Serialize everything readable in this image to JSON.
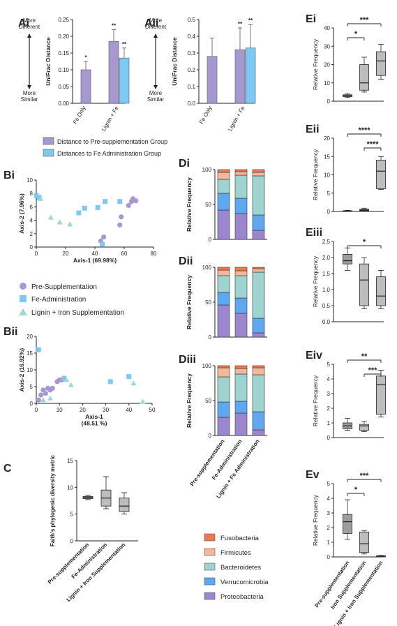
{
  "colors": {
    "purple": "#a898d0",
    "blue": "#7ec8f2",
    "teal": "#9fd6d6",
    "orange_red": "#f07850",
    "salmon": "#f4b79a",
    "light_teal": "#9ed3d0",
    "verr_blue": "#5fa8f0",
    "proteo": "#9c87cf",
    "gray_box": "#9e9e9e",
    "gray_box2": "#bdbdbd"
  },
  "panels": {
    "Ai": {
      "label": "Ai",
      "more_different": "More\nDifferent",
      "more_similar": "More\nSimilar",
      "ylabel": "UniFrac Distance",
      "ylim": [
        0,
        0.25
      ],
      "yticks": [
        "0.00",
        "0.05",
        "0.10",
        "0.15",
        "0.20",
        "0.25"
      ],
      "categories": [
        "Fe Only",
        "Lignin + Fe"
      ],
      "bars": [
        {
          "cat": 0,
          "series": "pre",
          "value": 0.1,
          "err": 0.025,
          "sig": "*"
        },
        {
          "cat": 1,
          "series": "pre",
          "value": 0.185,
          "err": 0.035,
          "sig": "**"
        },
        {
          "cat": 1,
          "series": "fe",
          "value": 0.135,
          "err": 0.03,
          "sig": "**"
        }
      ]
    },
    "Aii": {
      "label": "Aii",
      "more_different": "More\nDifferent",
      "more_similar": "More\nSimilar",
      "ylabel": "UniFrac Distance",
      "ylim": [
        0,
        0.5
      ],
      "yticks": [
        "0.0",
        "0.1",
        "0.2",
        "0.3",
        "0.4",
        "0.5"
      ],
      "categories": [
        "Fe Only",
        "Lignin + Fe"
      ],
      "bars": [
        {
          "cat": 0,
          "series": "pre",
          "value": 0.28,
          "err": 0.11,
          "sig": ""
        },
        {
          "cat": 1,
          "series": "pre",
          "value": 0.32,
          "err": 0.13,
          "sig": "**"
        },
        {
          "cat": 1,
          "series": "fe",
          "value": 0.33,
          "err": 0.14,
          "sig": "**"
        }
      ]
    },
    "A_legend": [
      "Distance to Pre-supplementation Group",
      "Distances to Fe Administration Group"
    ],
    "Bi": {
      "label": "Bi",
      "xlabel": "Axis-1 (69.98%)",
      "ylabel": "Axis-2 (7.96%)",
      "xlim": [
        0,
        80
      ],
      "ylim": [
        0,
        10
      ],
      "xticks": [
        "0",
        "20",
        "40",
        "60",
        "80"
      ],
      "yticks": [
        "0",
        "2",
        "4",
        "6",
        "8",
        "10"
      ],
      "pre": [
        [
          44,
          0.9
        ],
        [
          46,
          1.5
        ],
        [
          57,
          3.3
        ],
        [
          58,
          4.5
        ],
        [
          63,
          6.2
        ],
        [
          65,
          6.8
        ],
        [
          66,
          7.2
        ],
        [
          68,
          6.9
        ]
      ],
      "fe": [
        [
          29,
          5.1
        ],
        [
          33,
          5.8
        ],
        [
          42,
          5.9
        ],
        [
          45,
          0.4
        ],
        [
          47,
          6.8
        ],
        [
          57,
          6.8
        ],
        [
          0,
          7.7
        ],
        [
          2,
          7.4
        ]
      ],
      "lig": [
        [
          3,
          7.2
        ],
        [
          10,
          4.4
        ],
        [
          16,
          3.7
        ],
        [
          23,
          3.4
        ]
      ]
    },
    "B_legend": [
      "Pre-Supplementation",
      "Fe-Administration",
      "Lignin + Iron Supplementation"
    ],
    "Bii": {
      "label": "Bii",
      "xlabel": "Axis-1\n(48.51 %)",
      "ylabel": "Axis-2 (16.92%)",
      "xlim": [
        0,
        50
      ],
      "ylim": [
        0,
        20
      ],
      "xticks": [
        "0",
        "10",
        "20",
        "30",
        "40",
        "50"
      ],
      "yticks": [
        "0",
        "5",
        "10",
        "15",
        "20"
      ],
      "pre": [
        [
          1,
          1
        ],
        [
          2,
          2.5
        ],
        [
          3,
          4
        ],
        [
          4,
          3
        ],
        [
          5,
          4.5
        ],
        [
          6,
          4
        ],
        [
          7,
          4.5
        ],
        [
          9,
          6.5
        ],
        [
          10,
          7
        ],
        [
          11,
          7
        ]
      ],
      "fe": [
        [
          1,
          16
        ],
        [
          12,
          7.5
        ],
        [
          32,
          6.5
        ],
        [
          40,
          8
        ]
      ],
      "lig": [
        [
          3,
          1
        ],
        [
          6,
          1.5
        ],
        [
          13,
          7
        ],
        [
          15,
          5.5
        ],
        [
          42,
          6
        ],
        [
          46,
          0.5
        ]
      ]
    },
    "C": {
      "label": "C",
      "ylabel": "Faith's phylogenic diversity metric",
      "ylim": [
        0,
        15
      ],
      "yticks": [
        "0",
        "5",
        "10",
        "15"
      ],
      "categories": [
        "Pre-supplementation",
        "Fe-Administration",
        "Lignin + Iron Supplementation"
      ],
      "boxes": [
        {
          "min": 7.7,
          "q1": 7.9,
          "med": 8.1,
          "q3": 8.3,
          "max": 8.5
        },
        {
          "min": 6,
          "q1": 6.5,
          "med": 8,
          "q3": 9.5,
          "max": 12
        },
        {
          "min": 5,
          "q1": 5.5,
          "med": 6.5,
          "q3": 8,
          "max": 9
        }
      ]
    },
    "D": {
      "ylabel": "Relative Frequency",
      "ylim": [
        0,
        100
      ],
      "yticks": [
        "0",
        "50",
        "100"
      ],
      "categories": [
        "Pre-supplementation",
        "Fe-Administration",
        "Lignin + Fe Administration"
      ],
      "phyla": [
        "Proteobacteria",
        "Verrucomicrobia",
        "Bacteroidetes",
        "Firmicutes",
        "Fusobacteria"
      ],
      "panels": [
        {
          "label": "Di",
          "stacks": [
            [
              42,
              24,
              20,
              10,
              4
            ],
            [
              37,
              22,
              33,
              5,
              3
            ],
            [
              13,
              22,
              56,
              5,
              4
            ]
          ]
        },
        {
          "label": "Dii",
          "stacks": [
            [
              46,
              18,
              24,
              8,
              4
            ],
            [
              34,
              22,
              32,
              7,
              5
            ],
            [
              6,
              21,
              66,
              5,
              2
            ]
          ]
        },
        {
          "label": "Diii",
          "stacks": [
            [
              26,
              22,
              36,
              13,
              3
            ],
            [
              32,
              17,
              39,
              8,
              4
            ],
            [
              8,
              26,
              53,
              10,
              3
            ]
          ]
        }
      ]
    },
    "D_legend": [
      "Fusobacteria",
      "Firmicutes",
      "Bacteroidetes",
      "Verrucomicrobia",
      "Proteobacteria"
    ],
    "E": {
      "ylabel": "Relative Frequency",
      "categories": [
        "Pre-supplementation",
        "Iron Supplementation",
        "Lignin + Iron Supplementation"
      ],
      "panels": [
        {
          "label": "Ei",
          "ylim": [
            0,
            40
          ],
          "yticks": [
            "0",
            "10",
            "20",
            "30",
            "40"
          ],
          "boxes": [
            [
              2,
              2.5,
              3,
              3.5,
              4
            ],
            [
              5,
              6,
              10,
              20,
              24
            ],
            [
              12,
              14,
              22,
              27,
              31
            ]
          ],
          "sig": [
            {
              "a": 0,
              "b": 1,
              "t": "*"
            },
            {
              "a": 0,
              "b": 2,
              "t": "***"
            }
          ]
        },
        {
          "label": "Eii",
          "ylim": [
            0,
            20
          ],
          "yticks": [
            "0",
            "5",
            "10",
            "15",
            "20"
          ],
          "boxes": [
            [
              0,
              0,
              0.1,
              0.2,
              0.3
            ],
            [
              0,
              0.2,
              0.4,
              0.6,
              0.9
            ],
            [
              6,
              6.2,
              11,
              14,
              15
            ]
          ],
          "sig": [
            {
              "a": 1,
              "b": 2,
              "t": "****"
            },
            {
              "a": 0,
              "b": 2,
              "t": "****"
            }
          ]
        },
        {
          "label": "Eiii",
          "ylim": [
            0,
            2.5
          ],
          "yticks": [
            "0.0",
            "0.5",
            "1.0",
            "1.5",
            "2.0",
            "2.5"
          ],
          "boxes": [
            [
              1.6,
              1.8,
              1.9,
              2.1,
              2.3
            ],
            [
              0.4,
              0.5,
              1.3,
              1.8,
              2.0
            ],
            [
              0.4,
              0.5,
              0.8,
              1.4,
              1.6
            ]
          ],
          "sig": [
            {
              "a": 0,
              "b": 2,
              "t": "*"
            }
          ]
        },
        {
          "label": "Eiv",
          "ylim": [
            0,
            5
          ],
          "yticks": [
            "0",
            "1",
            "2",
            "3",
            "4",
            "5"
          ],
          "boxes": [
            [
              0.5,
              0.6,
              0.8,
              1.0,
              1.3
            ],
            [
              0.4,
              0.5,
              0.8,
              0.9,
              1.1
            ],
            [
              1.4,
              1.6,
              3.6,
              4.2,
              4.6
            ]
          ],
          "sig": [
            {
              "a": 1,
              "b": 2,
              "t": "***"
            },
            {
              "a": 0,
              "b": 2,
              "t": "**"
            }
          ]
        },
        {
          "label": "Ev",
          "ylim": [
            0,
            5
          ],
          "yticks": [
            "0",
            "1",
            "2",
            "3",
            "4",
            "5"
          ],
          "boxes": [
            [
              1.2,
              1.6,
              2.4,
              2.9,
              3.9
            ],
            [
              0.2,
              0.3,
              0.9,
              1.7,
              1.8
            ],
            [
              0,
              0,
              0.05,
              0.08,
              0.1
            ]
          ],
          "sig": [
            {
              "a": 0,
              "b": 1,
              "t": "*"
            },
            {
              "a": 0,
              "b": 2,
              "t": "***"
            }
          ]
        }
      ]
    }
  }
}
